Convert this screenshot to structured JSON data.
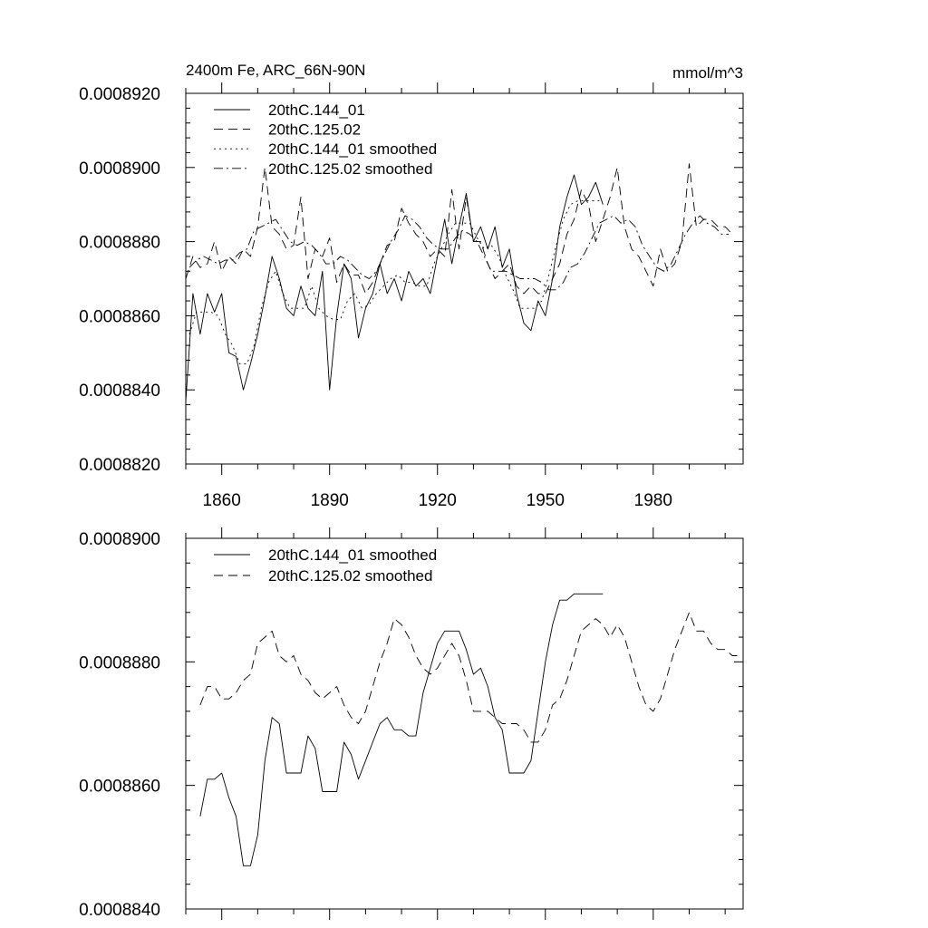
{
  "chart_data": [
    {
      "type": "line",
      "title": "2400m Fe, ARC_66N-90N",
      "units": "mmol/m^3",
      "xlim": [
        1850,
        2005
      ],
      "ylim": [
        0.000882,
        0.000892
      ],
      "x_ticks": [
        1860,
        1890,
        1920,
        1950,
        1980
      ],
      "x_tick_labels": [
        "1860",
        "1890",
        "1920",
        "1950",
        "1980"
      ],
      "y_ticks": [
        0.000882,
        0.000884,
        0.000886,
        0.000888,
        0.00089,
        0.000892
      ],
      "y_tick_labels": [
        "0.0008820",
        "0.0008840",
        "0.0008860",
        "0.0008880",
        "0.0008900",
        "0.0008920"
      ],
      "legend_position": "top-left",
      "series": [
        {
          "name": "20thC.144_01",
          "dash": "solid",
          "x": [
            1850,
            1852,
            1854,
            1856,
            1858,
            1860,
            1862,
            1864,
            1866,
            1868,
            1870,
            1872,
            1874,
            1876,
            1878,
            1880,
            1882,
            1884,
            1886,
            1888,
            1890,
            1892,
            1894,
            1896,
            1898,
            1900,
            1902,
            1904,
            1906,
            1908,
            1910,
            1912,
            1914,
            1916,
            1918,
            1920,
            1922,
            1924,
            1926,
            1928,
            1930,
            1932,
            1934,
            1936,
            1938,
            1940,
            1942,
            1944,
            1946,
            1948,
            1950,
            1952,
            1954,
            1956,
            1958,
            1960,
            1962,
            1964,
            1966
          ],
          "y": [
            0.0008837,
            0.0008866,
            0.0008855,
            0.0008866,
            0.0008861,
            0.0008866,
            0.000885,
            0.0008849,
            0.000884,
            0.0008847,
            0.0008855,
            0.0008865,
            0.0008876,
            0.000887,
            0.0008862,
            0.000886,
            0.0008868,
            0.0008862,
            0.000886,
            0.0008872,
            0.000884,
            0.000886,
            0.0008874,
            0.000887,
            0.0008854,
            0.0008862,
            0.0008866,
            0.0008874,
            0.0008866,
            0.000887,
            0.0008864,
            0.0008872,
            0.0008868,
            0.000887,
            0.0008866,
            0.0008876,
            0.0008886,
            0.0008874,
            0.0008884,
            0.0008893,
            0.000888,
            0.0008884,
            0.0008878,
            0.0008884,
            0.0008873,
            0.0008878,
            0.0008866,
            0.0008858,
            0.0008856,
            0.0008864,
            0.000886,
            0.000887,
            0.0008884,
            0.0008892,
            0.0008898,
            0.000889,
            0.0008892,
            0.0008896,
            0.000889
          ]
        },
        {
          "name": "20thC.125.02",
          "dash": "long-dash",
          "x": [
            1850,
            1852,
            1854,
            1856,
            1858,
            1860,
            1862,
            1864,
            1866,
            1868,
            1870,
            1872,
            1874,
            1876,
            1878,
            1880,
            1882,
            1884,
            1886,
            1888,
            1890,
            1892,
            1894,
            1896,
            1898,
            1900,
            1902,
            1904,
            1906,
            1908,
            1910,
            1912,
            1914,
            1916,
            1918,
            1920,
            1922,
            1924,
            1926,
            1928,
            1930,
            1932,
            1934,
            1936,
            1938,
            1940,
            1942,
            1944,
            1946,
            1948,
            1950,
            1952,
            1954,
            1956,
            1958,
            1960,
            1962,
            1964,
            1966,
            1968,
            1970,
            1972,
            1974,
            1976,
            1978,
            1980,
            1982,
            1984,
            1986,
            1988,
            1990,
            1992,
            1994,
            1996,
            1998,
            2000,
            2002
          ],
          "y": [
            0.000887,
            0.0008876,
            0.0008873,
            0.0008874,
            0.000888,
            0.0008872,
            0.0008876,
            0.0008874,
            0.0008878,
            0.0008876,
            0.0008884,
            0.00089,
            0.0008884,
            0.0008882,
            0.0008878,
            0.0008879,
            0.0008892,
            0.000887,
            0.0008878,
            0.0008876,
            0.0008881,
            0.0008869,
            0.0008874,
            0.0008871,
            0.0008871,
            0.0008866,
            0.0008869,
            0.0008874,
            0.0008879,
            0.000888,
            0.0008889,
            0.0008885,
            0.0008882,
            0.000888,
            0.0008876,
            0.0008878,
            0.0008876,
            0.0008894,
            0.0008878,
            0.0008892,
            0.000888,
            0.000888,
            0.0008874,
            0.000887,
            0.0008872,
            0.0008874,
            0.0008868,
            0.0008866,
            0.0008868,
            0.0008866,
            0.0008866,
            0.000887,
            0.0008874,
            0.0008882,
            0.0008886,
            0.0008894,
            0.000889,
            0.000888,
            0.0008886,
            0.0008892,
            0.00089,
            0.0008884,
            0.0008878,
            0.0008876,
            0.0008872,
            0.0008868,
            0.0008878,
            0.0008872,
            0.0008874,
            0.000888,
            0.0008901,
            0.0008884,
            0.0008886,
            0.0008886,
            0.0008884,
            0.0008884,
            0.0008882
          ]
        },
        {
          "name": "20thC.144_01 smoothed",
          "dash": "dotted",
          "x": [
            1851,
            1853,
            1855,
            1857,
            1859,
            1861,
            1863,
            1865,
            1867,
            1869,
            1871,
            1873,
            1875,
            1877,
            1879,
            1881,
            1883,
            1885,
            1887,
            1889,
            1891,
            1893,
            1895,
            1897,
            1899,
            1901,
            1903,
            1905,
            1907,
            1909,
            1911,
            1913,
            1915,
            1917,
            1919,
            1921,
            1923,
            1925,
            1927,
            1929,
            1931,
            1933,
            1935,
            1937,
            1939,
            1941,
            1943,
            1945,
            1947,
            1949,
            1951,
            1953,
            1955,
            1957,
            1959,
            1961,
            1963,
            1965
          ],
          "y": [
            0.0008855,
            0.0008861,
            0.0008861,
            0.0008861,
            0.000886,
            0.0008855,
            0.0008852,
            0.0008847,
            0.0008847,
            0.0008852,
            0.0008862,
            0.0008869,
            0.0008872,
            0.0008866,
            0.0008862,
            0.0008862,
            0.0008862,
            0.0008868,
            0.0008862,
            0.000886,
            0.0008859,
            0.0008859,
            0.0008864,
            0.0008866,
            0.0008862,
            0.0008863,
            0.0008866,
            0.0008868,
            0.000887,
            0.0008871,
            0.0008869,
            0.0008869,
            0.0008868,
            0.0008868,
            0.0008874,
            0.0008878,
            0.0008882,
            0.0008885,
            0.0008885,
            0.0008885,
            0.0008881,
            0.0008878,
            0.0008879,
            0.0008876,
            0.0008871,
            0.0008867,
            0.0008862,
            0.0008862,
            0.0008862,
            0.0008864,
            0.0008871,
            0.0008879,
            0.0008886,
            0.000889,
            0.0008891,
            0.0008891,
            0.0008891,
            0.0008891
          ]
        },
        {
          "name": "20thC.125.02 smoothed",
          "dash": "dash-dot",
          "x": [
            1851,
            1853,
            1855,
            1857,
            1859,
            1861,
            1863,
            1865,
            1867,
            1869,
            1871,
            1873,
            1875,
            1877,
            1879,
            1881,
            1883,
            1885,
            1887,
            1889,
            1891,
            1893,
            1895,
            1897,
            1899,
            1901,
            1903,
            1905,
            1907,
            1909,
            1911,
            1913,
            1915,
            1917,
            1919,
            1921,
            1923,
            1925,
            1927,
            1929,
            1931,
            1933,
            1935,
            1937,
            1939,
            1941,
            1943,
            1945,
            1947,
            1949,
            1951,
            1953,
            1955,
            1957,
            1959,
            1961,
            1963,
            1965,
            1967,
            1969,
            1971,
            1973,
            1975,
            1977,
            1979,
            1981,
            1983,
            1985,
            1987,
            1989,
            1991,
            1993,
            1995,
            1997,
            1999,
            2001
          ],
          "y": [
            0.0008873,
            0.0008875,
            0.0008876,
            0.0008875,
            0.0008874,
            0.0008875,
            0.0008875,
            0.0008877,
            0.0008878,
            0.0008883,
            0.0008884,
            0.0008885,
            0.0008886,
            0.0008883,
            0.000888,
            0.0008879,
            0.000888,
            0.0008879,
            0.0008877,
            0.0008874,
            0.0008874,
            0.0008876,
            0.0008875,
            0.0008873,
            0.0008871,
            0.000887,
            0.0008872,
            0.0008876,
            0.000888,
            0.0008883,
            0.0008887,
            0.0008886,
            0.0008884,
            0.0008881,
            0.0008879,
            0.0008878,
            0.0008878,
            0.0008881,
            0.0008883,
            0.0008882,
            0.000888,
            0.0008876,
            0.0008872,
            0.0008872,
            0.0008872,
            0.0008871,
            0.000887,
            0.000887,
            0.000887,
            0.0008869,
            0.0008867,
            0.0008867,
            0.0008869,
            0.0008873,
            0.0008874,
            0.0008877,
            0.0008881,
            0.0008885,
            0.0008886,
            0.0008887,
            0.0008885,
            0.0008886,
            0.0008884,
            0.0008879,
            0.0008876,
            0.0008873,
            0.0008872,
            0.0008874,
            0.0008878,
            0.0008882,
            0.0008885,
            0.0008887,
            0.0008885,
            0.0008884,
            0.0008882,
            0.0008882
          ]
        }
      ]
    },
    {
      "type": "line",
      "xlim": [
        1850,
        2005
      ],
      "ylim": [
        0.000884,
        0.00089
      ],
      "x_ticks": [
        1860,
        1890,
        1920,
        1950,
        1980
      ],
      "y_ticks": [
        0.000884,
        0.000886,
        0.000888,
        0.00089
      ],
      "y_tick_labels": [
        "0.0008840",
        "0.0008860",
        "0.0008880",
        "0.0008900"
      ],
      "legend_position": "top-left",
      "series": [
        {
          "name": "20thC.144_01 smoothed",
          "dash": "solid",
          "x": [
            1854,
            1856,
            1858,
            1860,
            1862,
            1864,
            1866,
            1868,
            1870,
            1872,
            1874,
            1876,
            1878,
            1880,
            1882,
            1884,
            1886,
            1888,
            1890,
            1892,
            1894,
            1896,
            1898,
            1900,
            1902,
            1904,
            1906,
            1908,
            1910,
            1912,
            1914,
            1916,
            1918,
            1920,
            1922,
            1924,
            1926,
            1928,
            1930,
            1932,
            1934,
            1936,
            1938,
            1940,
            1942,
            1944,
            1946,
            1948,
            1950,
            1952,
            1954,
            1956,
            1958,
            1960,
            1962,
            1964,
            1966
          ],
          "y": [
            0.0008855,
            0.0008861,
            0.0008861,
            0.0008862,
            0.0008858,
            0.0008855,
            0.0008847,
            0.0008847,
            0.0008852,
            0.0008864,
            0.0008871,
            0.000887,
            0.0008862,
            0.0008862,
            0.0008862,
            0.0008868,
            0.0008866,
            0.0008859,
            0.0008859,
            0.0008859,
            0.0008867,
            0.0008865,
            0.0008861,
            0.0008864,
            0.0008867,
            0.000887,
            0.0008871,
            0.0008869,
            0.0008869,
            0.0008868,
            0.0008868,
            0.0008875,
            0.0008879,
            0.0008883,
            0.0008885,
            0.0008885,
            0.0008885,
            0.0008882,
            0.0008878,
            0.0008879,
            0.0008876,
            0.0008871,
            0.0008869,
            0.0008862,
            0.0008862,
            0.0008862,
            0.0008864,
            0.0008872,
            0.000888,
            0.0008886,
            0.000889,
            0.000889,
            0.0008891,
            0.0008891,
            0.0008891,
            0.0008891,
            0.0008891
          ]
        },
        {
          "name": "20thC.125.02 smoothed",
          "dash": "long-dash",
          "x": [
            1854,
            1856,
            1858,
            1860,
            1862,
            1864,
            1866,
            1868,
            1870,
            1872,
            1874,
            1876,
            1878,
            1880,
            1882,
            1884,
            1886,
            1888,
            1890,
            1892,
            1894,
            1896,
            1898,
            1900,
            1902,
            1904,
            1906,
            1908,
            1910,
            1912,
            1914,
            1916,
            1918,
            1920,
            1922,
            1924,
            1926,
            1928,
            1930,
            1932,
            1934,
            1936,
            1938,
            1940,
            1942,
            1944,
            1946,
            1948,
            1950,
            1952,
            1954,
            1956,
            1958,
            1960,
            1962,
            1964,
            1966,
            1968,
            1970,
            1972,
            1974,
            1976,
            1978,
            1980,
            1982,
            1984,
            1986,
            1988,
            1990,
            1992,
            1994,
            1996,
            1998,
            2000,
            2002,
            2004
          ],
          "y": [
            0.0008873,
            0.0008876,
            0.0008876,
            0.0008874,
            0.0008874,
            0.0008875,
            0.0008877,
            0.0008878,
            0.0008883,
            0.0008884,
            0.0008885,
            0.0008881,
            0.000888,
            0.0008881,
            0.0008878,
            0.0008877,
            0.0008875,
            0.0008874,
            0.0008875,
            0.0008876,
            0.0008873,
            0.0008871,
            0.000887,
            0.0008872,
            0.0008876,
            0.000888,
            0.0008883,
            0.0008887,
            0.0008886,
            0.0008884,
            0.0008881,
            0.0008879,
            0.0008878,
            0.0008879,
            0.0008881,
            0.0008883,
            0.0008881,
            0.0008877,
            0.0008872,
            0.0008872,
            0.0008872,
            0.0008871,
            0.000887,
            0.000887,
            0.000887,
            0.0008869,
            0.0008867,
            0.0008867,
            0.0008869,
            0.0008873,
            0.0008874,
            0.0008877,
            0.0008881,
            0.0008885,
            0.0008886,
            0.0008887,
            0.0008886,
            0.0008884,
            0.0008886,
            0.0008884,
            0.000888,
            0.0008876,
            0.0008873,
            0.0008872,
            0.0008874,
            0.0008878,
            0.0008882,
            0.0008885,
            0.0008888,
            0.0008885,
            0.0008885,
            0.0008883,
            0.0008882,
            0.0008882,
            0.0008881,
            0.0008881
          ]
        }
      ]
    }
  ]
}
